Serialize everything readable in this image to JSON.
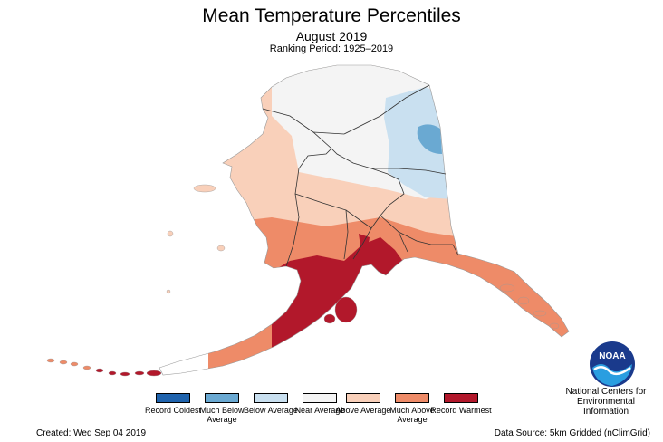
{
  "header": {
    "title": "Mean Temperature Percentiles",
    "subtitle": "August 2019",
    "period": "Ranking Period: 1925–2019"
  },
  "legend": [
    {
      "label": "Record Coldest",
      "color": "#1f63ad"
    },
    {
      "label": "Much Below Average",
      "color": "#6aa9d2"
    },
    {
      "label": "Below Average",
      "color": "#c9e0f0"
    },
    {
      "label": "Near Average",
      "color": "#f4f4f4"
    },
    {
      "label": "Above Average",
      "color": "#f9d0ba"
    },
    {
      "label": "Much Above Average",
      "color": "#ee8b68"
    },
    {
      "label": "Record Warmest",
      "color": "#b2182b"
    }
  ],
  "footer": {
    "created": "Created: Wed Sep 04 2019",
    "source": "Data Source: 5km Gridded (nClimGrid)"
  },
  "org": {
    "logo_text": "NOAA",
    "line1": "National Centers for",
    "line2": "Environmental",
    "line3": "Information"
  }
}
